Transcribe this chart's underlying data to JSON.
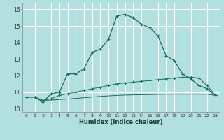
{
  "xlabel": "Humidex (Indice chaleur)",
  "background_color": "#b2e0e0",
  "grid_color": "#ffffff",
  "line_color": "#1a6b5a",
  "xlim": [
    -0.5,
    23.5
  ],
  "ylim": [
    9.8,
    16.4
  ],
  "xticks": [
    0,
    1,
    2,
    3,
    4,
    5,
    6,
    7,
    8,
    9,
    10,
    11,
    12,
    13,
    14,
    15,
    16,
    17,
    18,
    19,
    20,
    21,
    22,
    23
  ],
  "yticks": [
    10,
    11,
    12,
    13,
    14,
    15,
    16
  ],
  "curve1_x": [
    0,
    1,
    2,
    3,
    4,
    5,
    6,
    7,
    8,
    9,
    10,
    11,
    12,
    13,
    14,
    15,
    16,
    17,
    18,
    19,
    20,
    21,
    22,
    23
  ],
  "curve1_y": [
    10.7,
    10.7,
    10.4,
    10.9,
    11.0,
    12.1,
    12.1,
    12.4,
    13.4,
    13.6,
    14.2,
    15.6,
    15.7,
    15.5,
    15.1,
    14.9,
    14.4,
    13.2,
    12.9,
    12.1,
    11.8,
    11.4,
    11.2,
    10.8
  ],
  "curve2_x": [
    0,
    1,
    2,
    3,
    4,
    5,
    6,
    7,
    8,
    9,
    10,
    11,
    12,
    13,
    14,
    15,
    16,
    17,
    18,
    19,
    20,
    21,
    22,
    23
  ],
  "curve2_y": [
    10.7,
    10.7,
    10.5,
    10.6,
    10.8,
    10.9,
    11.0,
    11.1,
    11.2,
    11.3,
    11.4,
    11.5,
    11.55,
    11.6,
    11.65,
    11.7,
    11.75,
    11.8,
    11.85,
    11.9,
    11.9,
    11.85,
    11.4,
    10.8
  ],
  "curve3_x": [
    0,
    1,
    2,
    3,
    4,
    5,
    6,
    7,
    8,
    9,
    10,
    11,
    12,
    13,
    14,
    15,
    16,
    17,
    18,
    19,
    20,
    21,
    22,
    23
  ],
  "curve3_y": [
    10.7,
    10.7,
    10.5,
    10.52,
    10.55,
    10.58,
    10.62,
    10.66,
    10.7,
    10.74,
    10.77,
    10.8,
    10.82,
    10.83,
    10.84,
    10.85,
    10.86,
    10.87,
    10.87,
    10.87,
    10.87,
    10.87,
    10.87,
    10.8
  ]
}
